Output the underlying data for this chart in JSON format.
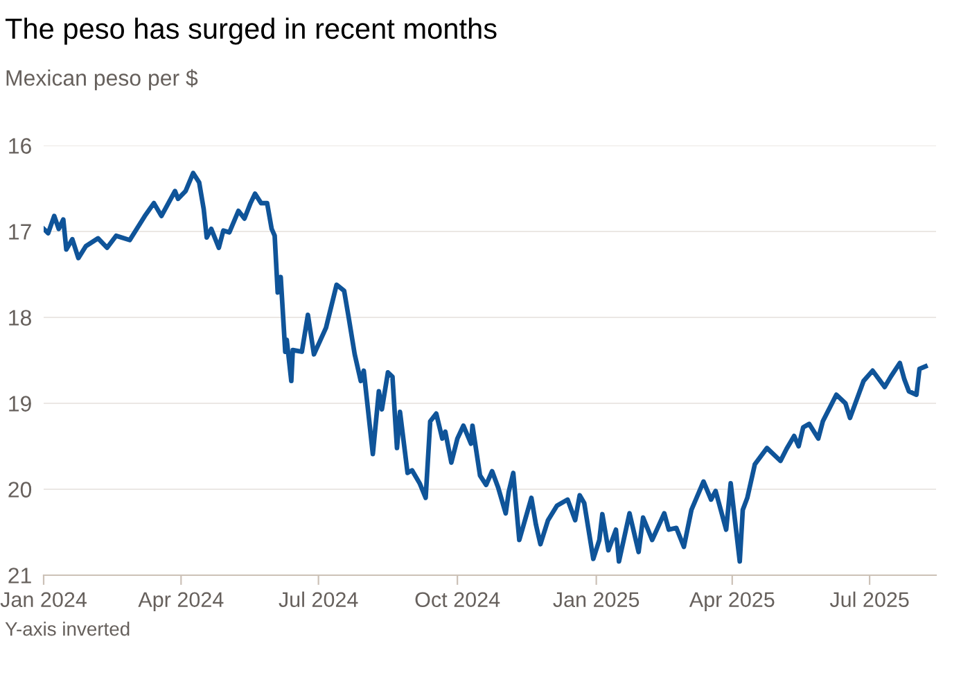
{
  "chart_data": {
    "type": "line",
    "title": "The peso has surged in recent months",
    "subtitle": "Mexican peso per $",
    "annotations": [
      "Y-axis inverted"
    ],
    "x": [
      "2024-01-01",
      "2024-01-04",
      "2024-01-08",
      "2024-01-11",
      "2024-01-14",
      "2024-01-16",
      "2024-01-20",
      "2024-01-24",
      "2024-01-29",
      "2024-02-06",
      "2024-02-12",
      "2024-02-18",
      "2024-02-27",
      "2024-03-08",
      "2024-03-14",
      "2024-03-19",
      "2024-03-28",
      "2024-03-30",
      "2024-04-04",
      "2024-04-09",
      "2024-04-13",
      "2024-04-16",
      "2024-04-18",
      "2024-04-21",
      "2024-04-26",
      "2024-04-29",
      "2024-05-03",
      "2024-05-09",
      "2024-05-13",
      "2024-05-17",
      "2024-05-20",
      "2024-05-24",
      "2024-05-28",
      "2024-05-31",
      "2024-06-02",
      "2024-06-04",
      "2024-06-06",
      "2024-06-09",
      "2024-06-10",
      "2024-06-13",
      "2024-06-14",
      "2024-06-20",
      "2024-06-24",
      "2024-06-28",
      "2024-07-06",
      "2024-07-13",
      "2024-07-18",
      "2024-07-21",
      "2024-07-25",
      "2024-07-29",
      "2024-07-31",
      "2024-08-06",
      "2024-08-10",
      "2024-08-12",
      "2024-08-16",
      "2024-08-19",
      "2024-08-22",
      "2024-08-24",
      "2024-08-29",
      "2024-09-01",
      "2024-09-06",
      "2024-09-10",
      "2024-09-13",
      "2024-09-17",
      "2024-09-21",
      "2024-09-23",
      "2024-09-27",
      "2024-10-01",
      "2024-10-05",
      "2024-10-10",
      "2024-10-11",
      "2024-10-16",
      "2024-10-20",
      "2024-10-24",
      "2024-10-28",
      "2024-11-02",
      "2024-11-04",
      "2024-11-07",
      "2024-11-11",
      "2024-11-19",
      "2024-11-22",
      "2024-11-25",
      "2024-11-30",
      "2024-12-06",
      "2024-12-13",
      "2024-12-18",
      "2024-12-21",
      "2024-12-24",
      "2024-12-30",
      "2025-01-03",
      "2025-01-05",
      "2025-01-09",
      "2025-01-14",
      "2025-01-16",
      "2025-01-23",
      "2025-01-29",
      "2025-02-01",
      "2025-02-07",
      "2025-02-15",
      "2025-02-18",
      "2025-02-23",
      "2025-02-28",
      "2025-03-05",
      "2025-03-13",
      "2025-03-18",
      "2025-03-21",
      "2025-03-28",
      "2025-03-31",
      "2025-04-06",
      "2025-04-08",
      "2025-04-11",
      "2025-04-16",
      "2025-04-24",
      "2025-05-03",
      "2025-05-07",
      "2025-05-12",
      "2025-05-15",
      "2025-05-18",
      "2025-05-22",
      "2025-05-28",
      "2025-05-31",
      "2025-06-09",
      "2025-06-15",
      "2025-06-18",
      "2025-06-27",
      "2025-07-03",
      "2025-07-11",
      "2025-07-15",
      "2025-07-21",
      "2025-07-24",
      "2025-07-27",
      "2025-08-01",
      "2025-08-03",
      "2025-08-07"
    ],
    "series": [
      {
        "color": "#0f5499",
        "values": [
          16.97,
          17.02,
          16.82,
          16.97,
          16.86,
          17.21,
          17.09,
          17.31,
          17.17,
          17.08,
          17.19,
          17.05,
          17.1,
          16.82,
          16.67,
          16.82,
          16.53,
          16.62,
          16.53,
          16.32,
          16.43,
          16.74,
          17.07,
          16.97,
          17.19,
          16.99,
          17.01,
          16.76,
          16.85,
          16.67,
          16.56,
          16.67,
          16.67,
          16.97,
          17.05,
          17.71,
          17.53,
          18.4,
          18.26,
          18.74,
          18.38,
          18.4,
          17.97,
          18.43,
          18.12,
          17.62,
          17.69,
          18.0,
          18.43,
          18.74,
          18.62,
          19.59,
          18.86,
          19.07,
          18.64,
          18.69,
          19.52,
          19.1,
          19.81,
          19.78,
          19.93,
          20.1,
          19.21,
          19.12,
          19.41,
          19.33,
          19.69,
          19.41,
          19.26,
          19.47,
          19.26,
          19.84,
          19.95,
          19.79,
          19.98,
          20.28,
          20.03,
          19.81,
          20.59,
          20.1,
          20.41,
          20.64,
          20.36,
          20.19,
          20.12,
          20.36,
          20.07,
          20.16,
          20.81,
          20.59,
          20.29,
          20.71,
          20.47,
          20.84,
          20.28,
          20.73,
          20.33,
          20.59,
          20.28,
          20.47,
          20.45,
          20.67,
          20.24,
          19.91,
          20.12,
          20.02,
          20.47,
          19.93,
          20.84,
          20.24,
          20.1,
          19.71,
          19.52,
          19.67,
          19.53,
          19.38,
          19.5,
          19.28,
          19.24,
          19.41,
          19.21,
          18.9,
          19.0,
          19.17,
          18.74,
          18.62,
          18.81,
          18.69,
          18.53,
          18.72,
          18.86,
          18.9,
          18.6,
          18.57
        ]
      }
    ],
    "xlim": [
      "2024-01-01",
      "2025-08-14"
    ],
    "xticks": [
      {
        "value": "2024-01-01",
        "label": "Jan 2024"
      },
      {
        "value": "2024-04-01",
        "label": "Apr 2024"
      },
      {
        "value": "2024-07-01",
        "label": "Jul 2024"
      },
      {
        "value": "2024-10-01",
        "label": "Oct 2024"
      },
      {
        "value": "2025-01-01",
        "label": "Jan 2025"
      },
      {
        "value": "2025-04-01",
        "label": "Apr 2025"
      },
      {
        "value": "2025-07-01",
        "label": "Jul 2025"
      }
    ],
    "ylim": [
      21,
      16
    ],
    "yticks": [
      16,
      17,
      18,
      19,
      20,
      21
    ],
    "grid": "y",
    "legend": false,
    "marker": "none",
    "line_style": "solid"
  }
}
